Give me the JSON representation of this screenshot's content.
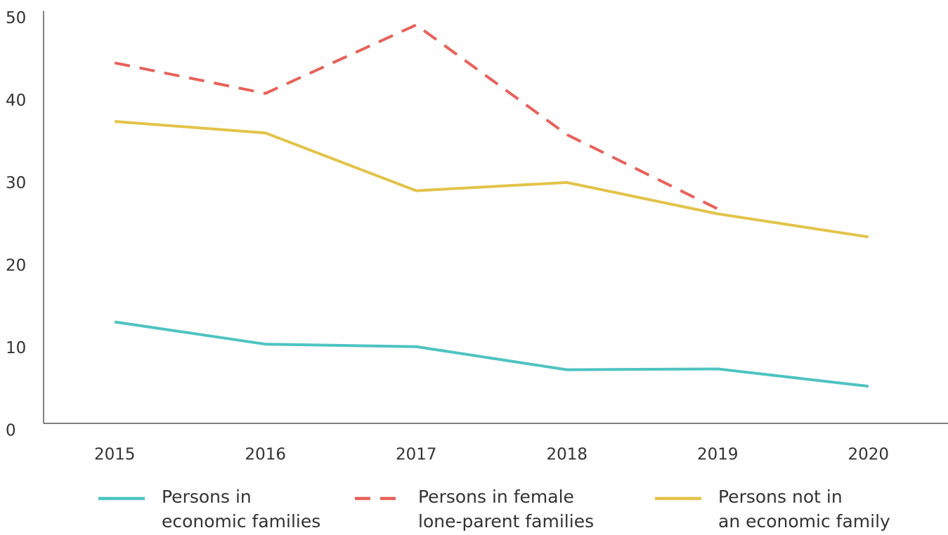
{
  "chart_data": {
    "type": "line",
    "categories": [
      "2015",
      "2016",
      "2017",
      "2018",
      "2019",
      "2020"
    ],
    "series": [
      {
        "name": "Persons in economic families",
        "color": "#4ec3c1",
        "dash": false,
        "values": [
          12.3,
          9.6,
          9.3,
          6.5,
          6.6,
          4.5
        ]
      },
      {
        "name": "Persons in female lone-parent families",
        "color": "#e8615a",
        "dash": true,
        "values": [
          43.7,
          40.0,
          48.3,
          35.0,
          26.0,
          null
        ]
      },
      {
        "name": "Persons not in an economic family",
        "color": "#e2c349",
        "dash": false,
        "values": [
          36.6,
          35.2,
          28.2,
          29.2,
          25.4,
          22.6
        ]
      }
    ],
    "ylim": [
      0,
      50
    ],
    "yticks": [
      0,
      10,
      20,
      30,
      40,
      50
    ],
    "grid": false,
    "legend": "bottom"
  }
}
